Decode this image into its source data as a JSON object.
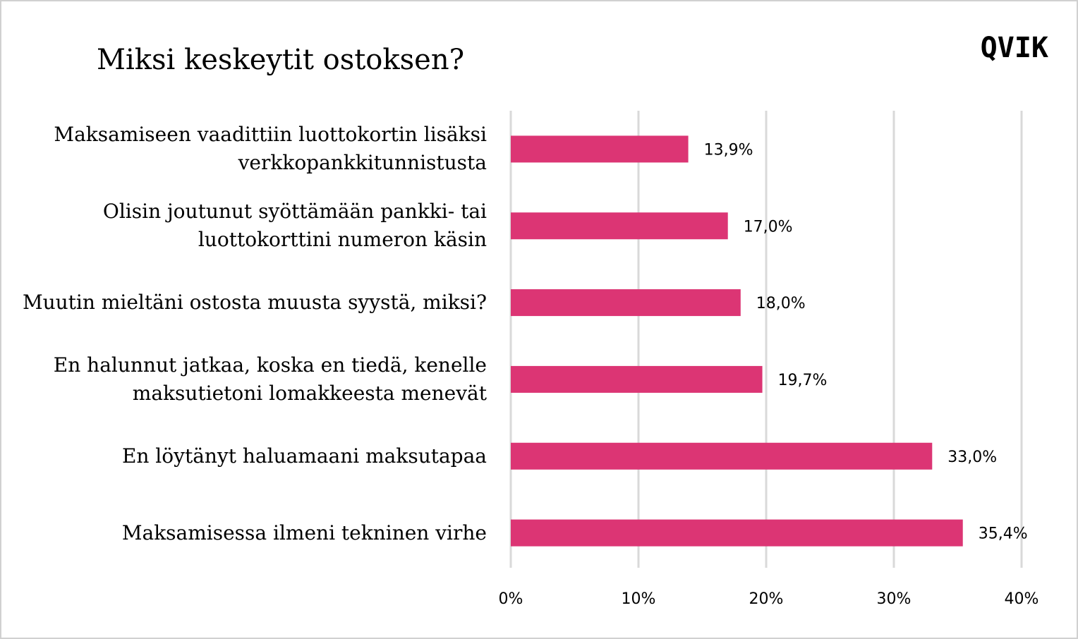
{
  "chart_data": {
    "type": "barh",
    "title": "Miksi keskeytit ostoksen?",
    "logo": "QVIK",
    "categories": [
      "Maksamiseen vaadittiin luottokortin lisäksi verkkopankkitunnistusta",
      "Olisin joutunut syöttämään pankki- tai luottokorttini numeron käsin",
      "Muutin mieltäni ostosta muusta syystä, miksi?",
      "En halunnut jatkaa, koska en tiedä, kenelle maksutietoni lomakkeesta menevät",
      "En löytänyt haluamaani maksutapaa",
      "Maksamisessa ilmeni tekninen virhe"
    ],
    "values": [
      13.9,
      17.0,
      18.0,
      19.7,
      33.0,
      35.4
    ],
    "value_labels": [
      "13,9%",
      "17,0%",
      "18,0%",
      "19,7%",
      "33,0%",
      "35,4%"
    ],
    "color": "#dc3574",
    "xlim": [
      0,
      40
    ],
    "xticks": [
      {
        "value": 0,
        "label": "0%"
      },
      {
        "value": 10,
        "label": "10%"
      },
      {
        "value": 20,
        "label": "20%"
      },
      {
        "value": 30,
        "label": "30%"
      },
      {
        "value": 40,
        "label": "40%"
      }
    ],
    "grid": true
  }
}
